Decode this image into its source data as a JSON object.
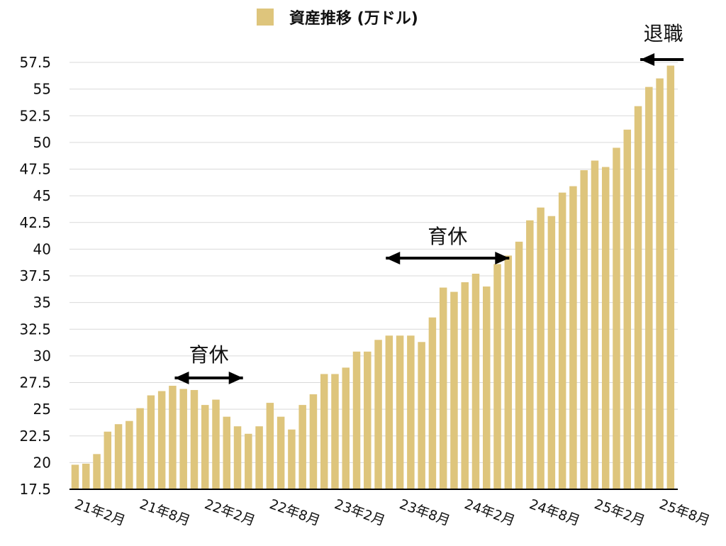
{
  "chart_data": {
    "type": "bar",
    "title": "",
    "legend": {
      "label": "資産推移 (万ドル)",
      "placement": "top-center"
    },
    "ylabel": "",
    "xlabel": "",
    "ylim": [
      17.5,
      57.5
    ],
    "yticks": [
      "17.5",
      "20",
      "22.5",
      "25",
      "27.5",
      "30",
      "32.5",
      "35",
      "37.5",
      "40",
      "42.5",
      "45",
      "47.5",
      "50",
      "52.5",
      "55",
      "57.5"
    ],
    "xtick_labels": [
      "21年2月",
      "21年8月",
      "22年2月",
      "22年8月",
      "23年2月",
      "23年8月",
      "24年2月",
      "24年8月",
      "25年2月",
      "25年8月"
    ],
    "xtick_every": 6,
    "grid": true,
    "bar_color": "#DEC57C",
    "values": [
      19.8,
      19.9,
      20.8,
      22.9,
      23.6,
      23.9,
      25.1,
      26.3,
      26.7,
      27.2,
      26.9,
      26.8,
      25.4,
      25.9,
      24.3,
      23.4,
      22.7,
      23.4,
      25.6,
      24.3,
      23.1,
      25.4,
      26.4,
      28.3,
      28.3,
      28.9,
      30.4,
      30.4,
      31.5,
      31.9,
      31.9,
      31.9,
      31.3,
      33.6,
      36.4,
      36.0,
      36.9,
      37.7,
      36.5,
      38.6,
      39.4,
      40.7,
      42.7,
      43.9,
      43.1,
      45.3,
      45.9,
      47.4,
      48.3,
      47.7,
      49.5,
      51.2,
      53.4,
      55.2,
      56.0,
      57.2
    ],
    "annotations": [
      {
        "text": "育休",
        "type": "double-arrow",
        "from_index": 9.2,
        "to_index": 15.5
      },
      {
        "text": "育休",
        "type": "double-arrow",
        "from_index": 28.7,
        "to_index": 40.1
      },
      {
        "text": "退職",
        "type": "left-arrow",
        "from_index": 56.2,
        "to_index": 52.2
      }
    ]
  }
}
